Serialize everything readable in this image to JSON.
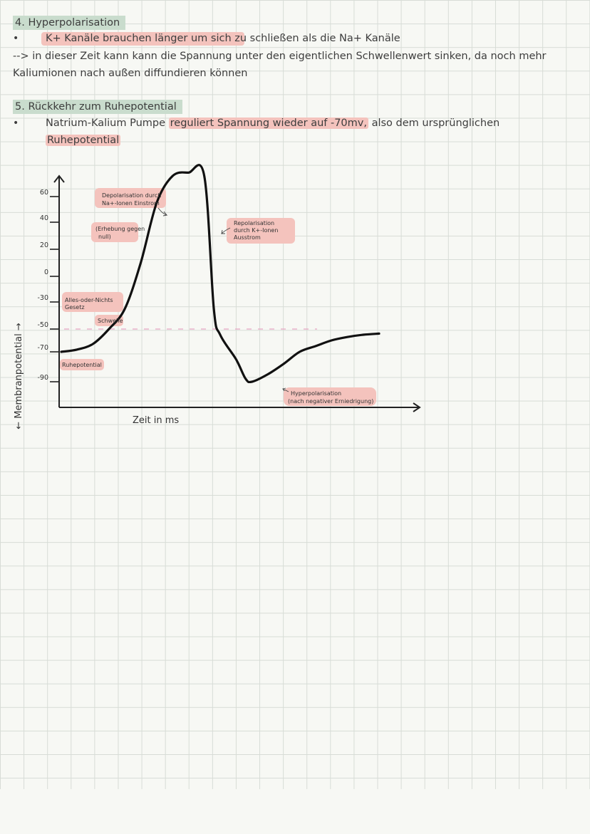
{
  "section4": {
    "heading": "4. Hyperpolarisation",
    "bullet1": "K+ Kanäle brauchen länger um sich zu schließen als die Na+ Kanäle",
    "line2": "--> in dieser Zeit kann kann die Spannung unter den eigentlichen Schwellenwert sinken, da noch mehr",
    "line3": "Kaliumionen nach außen diffundieren können"
  },
  "section5": {
    "heading": "5. Rückkehr zum Ruhepotential",
    "bullet1_pre": "Natrium-Kalium Pumpe",
    "bullet1_hl": "reguliert Spannung wieder auf -70mv,",
    "bullet1_post": "also dem ursprünglichen",
    "line2": "Ruhepotential"
  },
  "chart_data": {
    "type": "line",
    "xlabel": "Zeit in ms",
    "ylabel": "← Membranpotential →",
    "y_ticks": [
      "60",
      "40",
      "20",
      "0",
      "-30",
      "-50",
      "-70",
      "-90"
    ],
    "threshold": -50,
    "series": [
      {
        "x": [
          0,
          5,
          10,
          15,
          20,
          25,
          30,
          35,
          40,
          45,
          48,
          50,
          55,
          58,
          60,
          65,
          70,
          75,
          80,
          85,
          90,
          95,
          100
        ],
        "y": [
          -70,
          -68,
          -63,
          -50,
          -35,
          10,
          55,
          72,
          74,
          72,
          -35,
          -55,
          -75,
          -88,
          -90,
          -85,
          -78,
          -70,
          -65,
          -60,
          -57,
          -55,
          -54
        ]
      }
    ],
    "annotations": {
      "depol": [
        "Depolarisation durch",
        "Na+-Ionen Einstrom"
      ],
      "erhebung": [
        "(Erhebung gegen",
        "null)"
      ],
      "repol": [
        "Repolarisation",
        "durch K+-Ionen",
        "Ausstrom"
      ],
      "alles": [
        "Alles-oder-Nichts",
        "Gesetz"
      ],
      "schwelle": "Schwelle",
      "ruhe": "Ruhepotential",
      "hyper": [
        "Hyperpolarisation",
        "(nach negativer Erniedrigung)"
      ]
    }
  }
}
